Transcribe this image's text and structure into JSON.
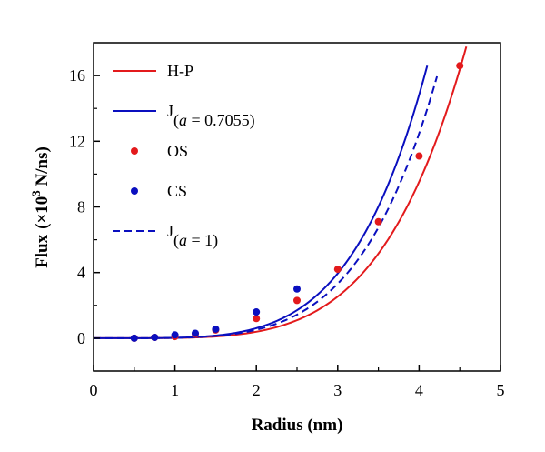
{
  "chart_data": {
    "type": "line",
    "xlabel": "Radius (nm)",
    "ylabel": {
      "prefix": "Flux",
      "unit_open": "(×10",
      "exponent": "3",
      "unit_close": " N/ns)"
    },
    "xlim": [
      0,
      5
    ],
    "ylim": [
      -2,
      18
    ],
    "xticks": [
      0,
      1,
      2,
      3,
      4,
      5
    ],
    "yticks": [
      0,
      4,
      8,
      12,
      16
    ],
    "grid": false,
    "legend_position": "top-left",
    "series": [
      {
        "name": "H-P",
        "kind": "line",
        "style": "solid",
        "color": "#e31a1c",
        "coef": 0.0162,
        "power": 4.6,
        "xrange": [
          0,
          4.58
        ]
      },
      {
        "name": "J(a = 0.7055)",
        "kind": "line",
        "style": "solid",
        "color": "#0a0fbf",
        "coef": 0.0252,
        "power": 4.6,
        "xrange": [
          0,
          4.1
        ]
      },
      {
        "name": "OS",
        "kind": "scatter",
        "color": "#e31a1c",
        "x": [
          0.5,
          0.75,
          1.0,
          1.25,
          1.5,
          2.0,
          2.5,
          3.0,
          3.5,
          4.0,
          4.5
        ],
        "y": [
          0.0,
          0.05,
          0.1,
          0.25,
          0.5,
          1.2,
          2.3,
          4.2,
          7.1,
          11.1,
          16.6
        ]
      },
      {
        "name": "CS",
        "kind": "scatter",
        "color": "#0a0fbf",
        "x": [
          0.5,
          0.75,
          1.0,
          1.25,
          1.5,
          2.0,
          2.5
        ],
        "y": [
          0.0,
          0.05,
          0.2,
          0.3,
          0.55,
          1.6,
          3.0
        ]
      },
      {
        "name": "J(a = 1)",
        "kind": "line",
        "style": "dashed",
        "color": "#0a0fbf",
        "coef": 0.0212,
        "power": 4.6,
        "xrange": [
          0,
          4.22
        ]
      }
    ],
    "legend": [
      {
        "main": "H-P",
        "sub": null
      },
      {
        "main": "J",
        "sub": [
          "(",
          "a",
          " = 0.7055)"
        ]
      },
      {
        "main": "OS",
        "sub": null
      },
      {
        "main": "CS",
        "sub": null
      },
      {
        "main": "J",
        "sub": [
          "(",
          "a",
          " = 1)"
        ]
      }
    ]
  }
}
